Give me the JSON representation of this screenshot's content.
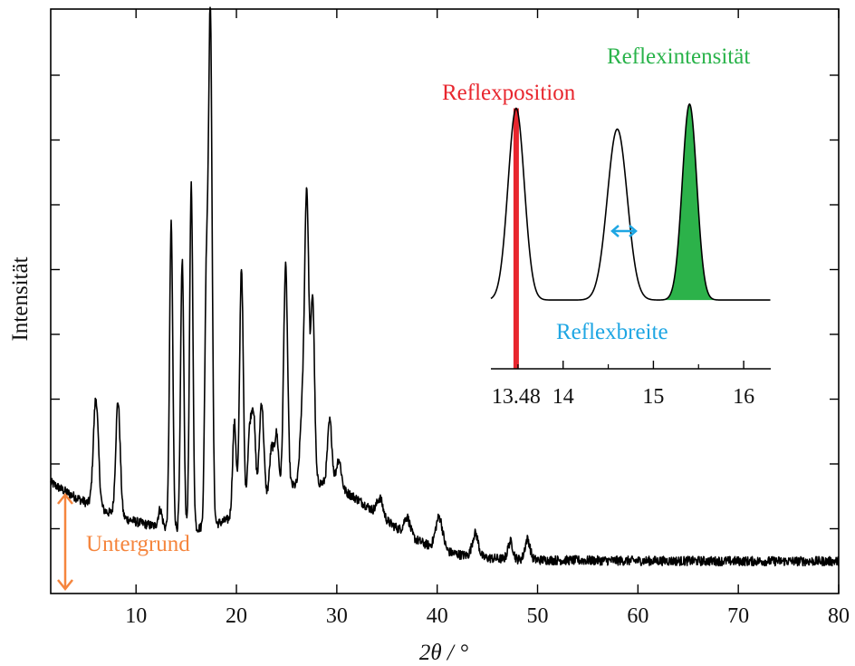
{
  "chart_data": [
    {
      "type": "line",
      "role": "main",
      "xlabel": "2θ / °",
      "ylabel": "Intensität",
      "xlim": [
        1.5,
        80
      ],
      "ylim": [
        0,
        1
      ],
      "x_ticks": [
        10,
        20,
        30,
        40,
        50,
        60,
        70,
        80
      ],
      "y_tick_labels": "none",
      "grid": false,
      "baseline": {
        "start": 0.19,
        "end": 0.055,
        "decay": 12
      },
      "hump": {
        "center": 28,
        "width": 6,
        "height": 0.12
      },
      "peaks": [
        {
          "x": 6.0,
          "h": 0.186,
          "w": 0.25
        },
        {
          "x": 8.2,
          "h": 0.196,
          "w": 0.22
        },
        {
          "x": 12.4,
          "h": 0.03,
          "w": 0.2
        },
        {
          "x": 13.5,
          "h": 0.52,
          "w": 0.16
        },
        {
          "x": 14.6,
          "h": 0.46,
          "w": 0.16
        },
        {
          "x": 15.5,
          "h": 0.59,
          "w": 0.16
        },
        {
          "x": 17.0,
          "h": 0.4,
          "w": 0.16
        },
        {
          "x": 17.4,
          "h": 0.875,
          "w": 0.18
        },
        {
          "x": 19.8,
          "h": 0.16,
          "w": 0.18
        },
        {
          "x": 20.5,
          "h": 0.42,
          "w": 0.18
        },
        {
          "x": 21.3,
          "h": 0.12,
          "w": 0.2
        },
        {
          "x": 21.7,
          "h": 0.15,
          "w": 0.2
        },
        {
          "x": 22.5,
          "h": 0.17,
          "w": 0.22
        },
        {
          "x": 23.5,
          "h": 0.08,
          "w": 0.2
        },
        {
          "x": 24.0,
          "h": 0.1,
          "w": 0.2
        },
        {
          "x": 24.9,
          "h": 0.38,
          "w": 0.2
        },
        {
          "x": 26.5,
          "h": 0.1,
          "w": 0.2
        },
        {
          "x": 27.0,
          "h": 0.5,
          "w": 0.22
        },
        {
          "x": 27.6,
          "h": 0.31,
          "w": 0.18
        },
        {
          "x": 29.3,
          "h": 0.11,
          "w": 0.22
        },
        {
          "x": 30.2,
          "h": 0.05,
          "w": 0.25
        },
        {
          "x": 34.3,
          "h": 0.03,
          "w": 0.3
        },
        {
          "x": 37.0,
          "h": 0.03,
          "w": 0.3
        },
        {
          "x": 40.2,
          "h": 0.055,
          "w": 0.35
        },
        {
          "x": 43.8,
          "h": 0.04,
          "w": 0.3
        },
        {
          "x": 47.3,
          "h": 0.03,
          "w": 0.25
        },
        {
          "x": 49.0,
          "h": 0.035,
          "w": 0.25
        }
      ],
      "annotations": [
        {
          "text": "Untergrund",
          "color": "#f5853d"
        }
      ]
    },
    {
      "type": "line",
      "role": "inset",
      "xlim": [
        13.2,
        16.3
      ],
      "ylim": [
        0,
        1
      ],
      "x_ticks": [
        14,
        15,
        16
      ],
      "marked_tick": {
        "x": 13.48,
        "label": "13.48",
        "color": "#e8262e"
      },
      "baseline": 0.03,
      "peaks": [
        {
          "x": 13.48,
          "h": 0.92,
          "w": 0.09
        },
        {
          "x": 14.6,
          "h": 0.82,
          "w": 0.11
        },
        {
          "x": 15.4,
          "h": 0.94,
          "w": 0.08
        }
      ],
      "annotations": [
        {
          "text": "Reflexposition",
          "color": "#e8262e"
        },
        {
          "text": "Reflexintensität",
          "color": "#29b34a"
        },
        {
          "text": "Reflexbreite",
          "color": "#1ea6e3"
        }
      ]
    }
  ]
}
